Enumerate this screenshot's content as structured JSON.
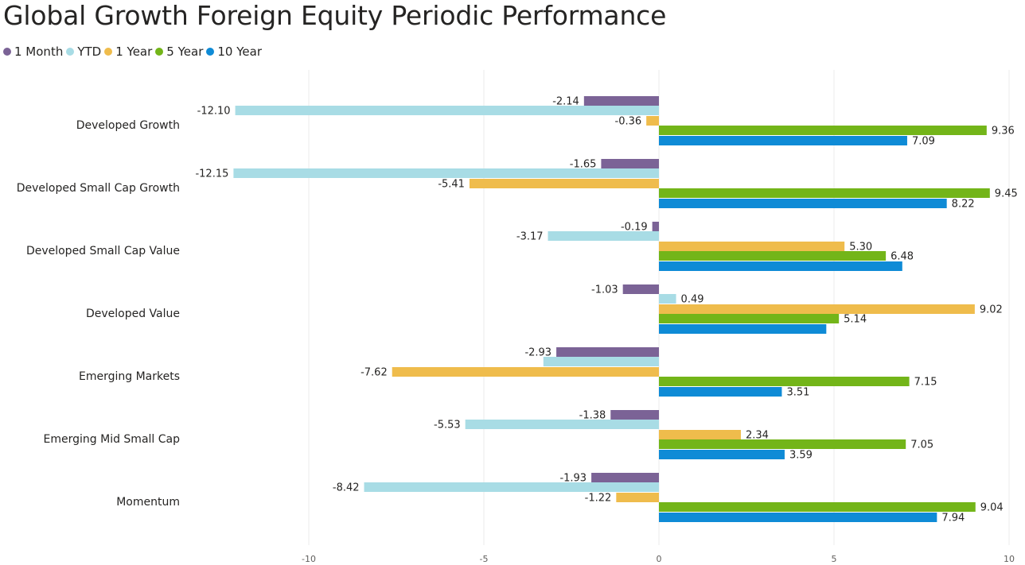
{
  "title": "Global Growth Foreign Equity Periodic Performance",
  "chart_data": {
    "type": "bar",
    "orientation": "horizontal",
    "title": "Global Growth Foreign Equity Periodic Performance",
    "xlabel": "",
    "ylabel": "",
    "xlim": [
      -12.15,
      10
    ],
    "xticks": [
      -10,
      -5,
      0,
      5,
      10
    ],
    "grid": true,
    "legend_position": "top-left",
    "categories": [
      "Developed Growth",
      "Developed Small Cap Growth",
      "Developed Small Cap Value",
      "Developed Value",
      "Emerging Markets",
      "Emerging Mid Small Cap",
      "Momentum"
    ],
    "series": [
      {
        "name": "1 Month",
        "color": "#7b6396",
        "values": [
          -2.14,
          -1.65,
          -0.19,
          -1.03,
          -2.93,
          -1.38,
          -1.93
        ],
        "labels": [
          "-2.14",
          "-1.65",
          "-0.19",
          "-1.03",
          "-2.93",
          "-1.38",
          "-1.93"
        ]
      },
      {
        "name": "YTD",
        "color": "#a8dce5",
        "values": [
          -12.1,
          -12.15,
          -3.17,
          0.49,
          -3.3,
          -5.53,
          -8.42
        ],
        "labels": [
          "-12.10",
          "-12.15",
          "-3.17",
          "0.49",
          "",
          "-5.53",
          "-8.42"
        ]
      },
      {
        "name": "1 Year",
        "color": "#efbc4c",
        "values": [
          -0.36,
          -5.41,
          5.3,
          9.02,
          -7.62,
          2.34,
          -1.22
        ],
        "labels": [
          "-0.36",
          "-5.41",
          "5.30",
          "9.02",
          "-7.62",
          "2.34",
          "-1.22"
        ]
      },
      {
        "name": "5 Year",
        "color": "#73b519",
        "values": [
          9.36,
          9.45,
          6.48,
          5.14,
          7.15,
          7.05,
          9.04
        ],
        "labels": [
          "9.36",
          "9.45",
          "6.48",
          "5.14",
          "7.15",
          "7.05",
          "9.04"
        ]
      },
      {
        "name": "10 Year",
        "color": "#0f8bd6",
        "values": [
          7.09,
          8.22,
          6.95,
          4.78,
          3.51,
          3.59,
          7.94
        ],
        "labels": [
          "7.09",
          "8.22",
          "",
          "",
          "3.51",
          "3.59",
          "7.94"
        ]
      }
    ]
  }
}
